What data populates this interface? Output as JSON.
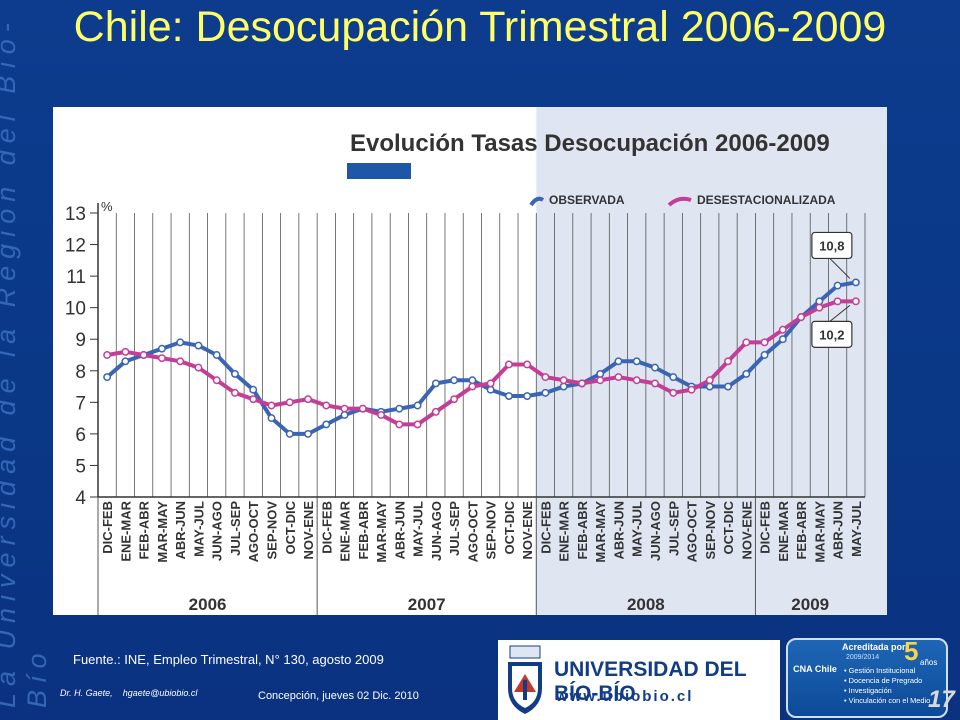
{
  "slide": {
    "title": "Chile: Desocupación Trimestral 2006-2009",
    "side_text": "La Universidad de la Región del Bío-Bío",
    "source": "Fuente.: INE, Empleo Trimestral, N° 130, agosto 2009",
    "author": "Dr. H. Gaete,",
    "author_email": "hgaete@ubiobio.cl",
    "place_date": "Concepción, jueves 02 Dic. 2010",
    "slide_number": "17",
    "university_name": "UNIVERSIDAD DEL BÍO-BÍO",
    "university_web": "www.ubiobio.cl",
    "accreditation": {
      "title": "Acreditada por",
      "years": "5",
      "years_label": "años",
      "period": "2009/2014",
      "agency": "CNA Chile",
      "items": [
        "Gestión Institucional",
        "Docencia de Pregrado",
        "Investigación",
        "Vinculación con el Medio"
      ]
    }
  },
  "chart_data": {
    "type": "line",
    "title": "Evolución Tasas Desocupación 2006-2009",
    "ylabel": "%",
    "ylim": [
      4,
      13
    ],
    "yticks": [
      4,
      5,
      6,
      7,
      8,
      9,
      10,
      11,
      12,
      13
    ],
    "legend_position": "top-right",
    "shaded_from_category": "DIC-FEB",
    "shaded_year": "2008",
    "categories": [
      "DIC-FEB",
      "ENE-MAR",
      "FEB-ABR",
      "MAR-MAY",
      "ABR-JUN",
      "MAY-JUL",
      "JUN-AGO",
      "JUL-SEP",
      "AGO-OCT",
      "SEP-NOV",
      "OCT-DIC",
      "NOV-ENE",
      "DIC-FEB",
      "ENE-MAR",
      "FEB-ABR",
      "MAR-MAY",
      "ABR-JUN",
      "MAY-JUL",
      "JUN-AGO",
      "JUL-SEP",
      "AGO-OCT",
      "SEP-NOV",
      "OCT-DIC",
      "NOV-ENE",
      "DIC-FEB",
      "ENE-MAR",
      "FEB-ABR",
      "MAR-MAY",
      "ABR-JUN",
      "MAY-JUL",
      "JUN-AGO",
      "JUL-SEP",
      "AGO-OCT",
      "SEP-NOV",
      "OCT-DIC",
      "NOV-ENE",
      "DIC-FEB",
      "ENE-MAR",
      "FEB-ABR",
      "MAR-MAY",
      "ABR-JUN",
      "MAY-JUL"
    ],
    "year_groups": [
      {
        "label": "2006",
        "start": 0,
        "end": 11
      },
      {
        "label": "2007",
        "start": 12,
        "end": 23
      },
      {
        "label": "2008",
        "start": 24,
        "end": 35
      },
      {
        "label": "2009",
        "start": 36,
        "end": 41
      }
    ],
    "series": [
      {
        "name": "OBSERVADA",
        "color": "#3a64b4",
        "values": [
          7.8,
          8.3,
          8.5,
          8.7,
          8.9,
          8.8,
          8.5,
          7.9,
          7.4,
          6.5,
          6.0,
          6.0,
          6.3,
          6.6,
          6.8,
          6.7,
          6.8,
          6.9,
          7.6,
          7.7,
          7.7,
          7.4,
          7.2,
          7.2,
          7.3,
          7.5,
          7.6,
          7.9,
          8.3,
          8.3,
          8.1,
          7.8,
          7.5,
          7.5,
          7.5,
          7.9,
          8.5,
          9.0,
          9.7,
          10.2,
          10.7,
          10.8
        ]
      },
      {
        "name": "DESESTACIONALIZADA",
        "color": "#c43d97",
        "values": [
          8.5,
          8.6,
          8.5,
          8.4,
          8.3,
          8.1,
          7.7,
          7.3,
          7.1,
          6.9,
          7.0,
          7.1,
          6.9,
          6.8,
          6.8,
          6.6,
          6.3,
          6.3,
          6.7,
          7.1,
          7.5,
          7.6,
          8.2,
          8.2,
          7.8,
          7.7,
          7.6,
          7.7,
          7.8,
          7.7,
          7.6,
          7.3,
          7.4,
          7.7,
          8.3,
          8.9,
          8.9,
          9.3,
          9.7,
          10.0,
          10.2,
          10.2
        ]
      }
    ],
    "annotations": [
      {
        "text": "10,8",
        "series": 0,
        "index": 41
      },
      {
        "text": "10,2",
        "series": 1,
        "index": 41
      }
    ]
  }
}
